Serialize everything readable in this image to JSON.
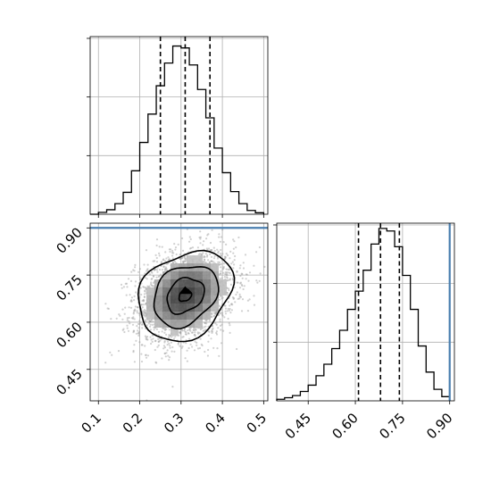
{
  "chart_data": {
    "type": "corner",
    "colors": {
      "truth_line": "#4a7fb0",
      "histogram": "#000000",
      "points": "#9a9a9a"
    },
    "grid": true,
    "parameters": [
      {
        "id": "p1",
        "xlim": [
          0.08,
          0.51
        ],
        "ticks": [
          "0.1",
          "0.2",
          "0.3",
          "0.4",
          "0.5"
        ],
        "tick_values": [
          0.1,
          0.2,
          0.3,
          0.4,
          0.5
        ],
        "quantiles": [
          0.25,
          0.31,
          0.37
        ],
        "hist_bin_edges": [
          0.08,
          0.1,
          0.12,
          0.14,
          0.16,
          0.18,
          0.2,
          0.22,
          0.24,
          0.26,
          0.28,
          0.3,
          0.32,
          0.34,
          0.36,
          0.38,
          0.4,
          0.42,
          0.44,
          0.46,
          0.48,
          0.5
        ],
        "hist_counts": [
          0,
          5,
          12,
          28,
          58,
          115,
          190,
          265,
          340,
          400,
          445,
          440,
          395,
          330,
          255,
          175,
          110,
          60,
          28,
          10,
          4
        ],
        "hist_ymax": 470
      },
      {
        "id": "p2",
        "xlim": [
          0.35,
          0.915
        ],
        "ticks": [
          "0.45",
          "0.60",
          "0.75",
          "0.90"
        ],
        "tick_values": [
          0.45,
          0.6,
          0.75,
          0.9
        ],
        "quantiles": [
          0.61,
          0.68,
          0.74
        ],
        "truth": 0.9,
        "hist_bin_edges": [
          0.35,
          0.375,
          0.4,
          0.425,
          0.45,
          0.475,
          0.5,
          0.525,
          0.55,
          0.575,
          0.6,
          0.625,
          0.65,
          0.675,
          0.7,
          0.725,
          0.75,
          0.775,
          0.8,
          0.825,
          0.85,
          0.875,
          0.9
        ],
        "hist_counts": [
          3,
          6,
          10,
          18,
          30,
          48,
          70,
          100,
          135,
          175,
          210,
          250,
          300,
          330,
          325,
          295,
          240,
          175,
          105,
          55,
          22,
          8
        ],
        "hist_ymax": 340
      }
    ],
    "joint": {
      "x_param": "p1",
      "y_param": "p2",
      "ylim": [
        0.35,
        0.915
      ],
      "yticks": [
        "0.45",
        "0.60",
        "0.75",
        "0.90"
      ],
      "ytick_values": [
        0.45,
        0.6,
        0.75,
        0.9
      ],
      "truth_y": 0.9,
      "center": [
        0.31,
        0.685
      ],
      "spread": [
        0.06,
        0.075
      ],
      "correlation": 0.25,
      "density_levels": 4
    }
  }
}
